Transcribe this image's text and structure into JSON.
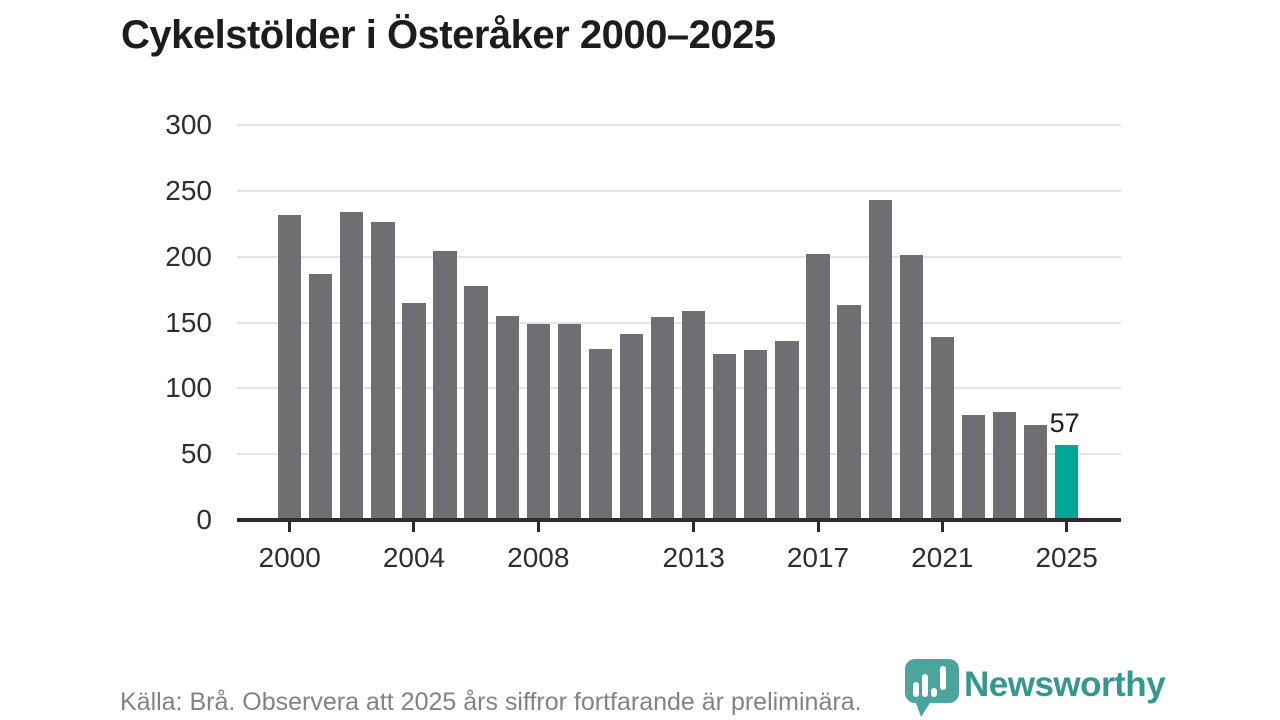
{
  "title": "Cykelstölder i Österåker 2000–2025",
  "footer": {
    "source_note": "Källa: Brå. Observera att 2025 års siffror fortfarande är preliminära."
  },
  "logo": {
    "brand": "Newsworthy",
    "icon": "newsworthy-speech-bubble-bar-chart-icon",
    "wordmark_color": "#35988f",
    "icon_color": "#4ba59d"
  },
  "colors": {
    "bar_default": "#6e6e73",
    "bar_highlight": "#00a696",
    "gridline": "#e4e4e4",
    "axis": "#2d2d2d",
    "title_text": "#1d1d1f",
    "tick_text": "#2f2f33",
    "footer_text": "#82828a"
  },
  "chart_data": {
    "type": "bar",
    "title": "Cykelstölder i Österåker 2000–2025",
    "xlabel": "",
    "ylabel": "",
    "x": [
      2000,
      2001,
      2002,
      2003,
      2004,
      2005,
      2006,
      2007,
      2008,
      2009,
      2010,
      2011,
      2012,
      2013,
      2014,
      2015,
      2016,
      2017,
      2018,
      2019,
      2020,
      2021,
      2022,
      2023,
      2024,
      2025
    ],
    "values": [
      232,
      187,
      234,
      226,
      165,
      204,
      178,
      155,
      149,
      149,
      130,
      141,
      154,
      159,
      126,
      129,
      136,
      202,
      163,
      243,
      201,
      139,
      80,
      82,
      72,
      57
    ],
    "series_name": "Cykelstölder",
    "ylim": [
      0,
      300
    ],
    "y_ticks": [
      0,
      50,
      100,
      150,
      200,
      250,
      300
    ],
    "x_tick_labels": [
      "2000",
      "2004",
      "2008",
      "2013",
      "2017",
      "2021",
      "2025"
    ],
    "x_tick_indices": [
      0,
      4,
      8,
      13,
      17,
      21,
      25
    ],
    "grid": "horizontal",
    "legend": "none",
    "highlight": {
      "index": 25,
      "year": 2025,
      "value": 57,
      "label": "57",
      "color": "#00a696"
    }
  }
}
